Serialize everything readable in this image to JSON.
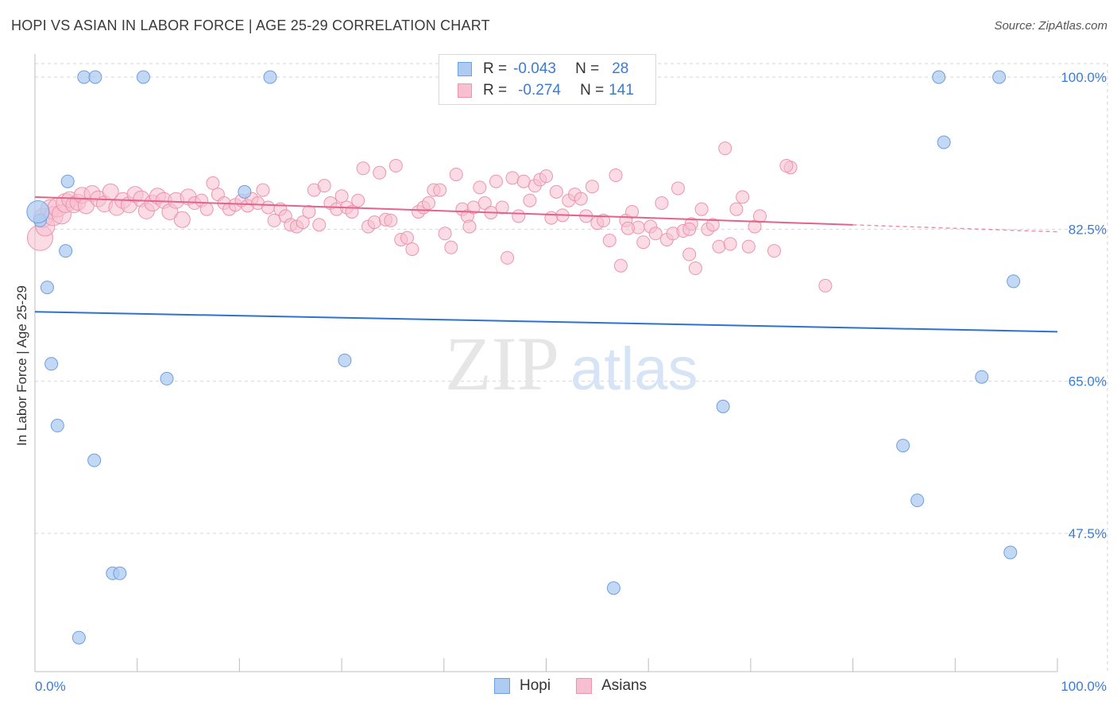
{
  "title": "HOPI VS ASIAN IN LABOR FORCE | AGE 25-29 CORRELATION CHART",
  "source": "Source: ZipAtlas.com",
  "watermark": {
    "zip": "ZIP",
    "atlas": "atlas"
  },
  "colors": {
    "hopi_fill": "#aecbf2",
    "hopi_stroke": "#6f9fdc",
    "hopi_line": "#2d72d2",
    "asian_fill": "#f7bfd0",
    "asian_stroke": "#eb94b0",
    "asian_line": "#e2648c",
    "axis_label": "#3d7bd0",
    "grid": "#d6d6d6"
  },
  "legend": {
    "hopi": {
      "r_label": "R =",
      "r_value": "-0.043",
      "n_label": "N =",
      "n_value": "28"
    },
    "asian": {
      "r_label": "R =",
      "r_value": "-0.274",
      "n_label": "N =",
      "n_value": "141"
    }
  },
  "bottom_legend": {
    "hopi": "Hopi",
    "asian": "Asians"
  },
  "chart_data": {
    "type": "scatter",
    "title": "HOPI VS ASIAN IN LABOR FORCE | AGE 25-29 CORRELATION CHART",
    "xlabel": "",
    "ylabel": "In Labor Force | Age 25-29",
    "xlim": [
      0,
      100
    ],
    "ylim": [
      33,
      102
    ],
    "x_tick_labels": [
      "0.0%",
      "100.0%"
    ],
    "y_ticks": [
      47.5,
      65.0,
      82.5,
      100.0
    ],
    "y_tick_labels": [
      "47.5%",
      "65.0%",
      "82.5%",
      "100.0%"
    ],
    "series": [
      {
        "name": "Hopi",
        "points": [
          [
            4.8,
            100.0
          ],
          [
            5.9,
            100.0
          ],
          [
            10.6,
            100.0
          ],
          [
            23.0,
            100.0
          ],
          [
            88.4,
            100.0
          ],
          [
            94.3,
            100.0
          ],
          [
            88.9,
            92.5
          ],
          [
            3.2,
            88.0
          ],
          [
            20.5,
            86.8
          ],
          [
            0.5,
            83.5
          ],
          [
            3.0,
            80.0
          ],
          [
            1.2,
            75.8
          ],
          [
            95.7,
            76.5
          ],
          [
            1.6,
            67.0
          ],
          [
            30.3,
            67.4
          ],
          [
            12.9,
            65.3
          ],
          [
            92.6,
            65.5
          ],
          [
            67.3,
            62.1
          ],
          [
            2.2,
            59.9
          ],
          [
            84.9,
            57.6
          ],
          [
            5.8,
            55.9
          ],
          [
            86.3,
            51.3
          ],
          [
            95.4,
            45.3
          ],
          [
            7.6,
            42.9
          ],
          [
            8.3,
            42.9
          ],
          [
            56.6,
            41.2
          ],
          [
            4.3,
            35.5
          ],
          [
            0.3,
            84.5
          ]
        ],
        "trend": {
          "x": [
            0,
            100
          ],
          "y": [
            73.0,
            70.7
          ]
        }
      },
      {
        "name": "Asians",
        "points": [
          [
            0.5,
            81.5
          ],
          [
            0.8,
            83.8
          ],
          [
            1.0,
            82.8
          ],
          [
            1.5,
            84.8
          ],
          [
            1.8,
            84.0
          ],
          [
            2.2,
            85.0
          ],
          [
            2.6,
            84.2
          ],
          [
            3.0,
            85.5
          ],
          [
            3.4,
            85.9
          ],
          [
            3.8,
            85.3
          ],
          [
            4.2,
            85.6
          ],
          [
            4.6,
            86.4
          ],
          [
            5.0,
            85.2
          ],
          [
            5.6,
            86.6
          ],
          [
            6.2,
            86.0
          ],
          [
            6.8,
            85.4
          ],
          [
            7.4,
            86.8
          ],
          [
            8.0,
            85.0
          ],
          [
            8.6,
            85.8
          ],
          [
            9.2,
            85.3
          ],
          [
            9.8,
            86.5
          ],
          [
            10.4,
            86.0
          ],
          [
            10.9,
            84.6
          ],
          [
            11.5,
            85.5
          ],
          [
            12.0,
            86.3
          ],
          [
            12.6,
            85.8
          ],
          [
            13.2,
            84.5
          ],
          [
            13.8,
            85.8
          ],
          [
            14.4,
            83.6
          ],
          [
            15.0,
            86.2
          ],
          [
            15.6,
            85.5
          ],
          [
            16.3,
            85.8
          ],
          [
            16.8,
            84.8
          ],
          [
            17.4,
            87.8
          ],
          [
            17.9,
            86.5
          ],
          [
            18.5,
            85.5
          ],
          [
            19.0,
            84.8
          ],
          [
            19.6,
            85.3
          ],
          [
            20.2,
            85.8
          ],
          [
            20.8,
            85.2
          ],
          [
            21.2,
            86.0
          ],
          [
            21.8,
            85.5
          ],
          [
            22.3,
            87.0
          ],
          [
            22.8,
            85.0
          ],
          [
            23.4,
            83.5
          ],
          [
            24.0,
            84.8
          ],
          [
            24.5,
            84.0
          ],
          [
            25.0,
            83.0
          ],
          [
            25.6,
            82.8
          ],
          [
            26.2,
            83.3
          ],
          [
            26.8,
            84.5
          ],
          [
            27.3,
            87.0
          ],
          [
            27.8,
            83.0
          ],
          [
            28.3,
            87.5
          ],
          [
            28.9,
            85.5
          ],
          [
            29.5,
            84.8
          ],
          [
            30.0,
            86.3
          ],
          [
            30.5,
            85.0
          ],
          [
            31.0,
            84.5
          ],
          [
            31.6,
            85.8
          ],
          [
            32.1,
            89.5
          ],
          [
            32.6,
            82.8
          ],
          [
            33.2,
            83.3
          ],
          [
            33.7,
            89.0
          ],
          [
            34.3,
            83.6
          ],
          [
            34.8,
            83.5
          ],
          [
            35.3,
            89.8
          ],
          [
            35.8,
            81.3
          ],
          [
            36.4,
            81.5
          ],
          [
            36.9,
            80.2
          ],
          [
            37.5,
            84.5
          ],
          [
            38.0,
            85.0
          ],
          [
            38.5,
            85.5
          ],
          [
            39.0,
            87.0
          ],
          [
            39.6,
            87.0
          ],
          [
            40.1,
            82.0
          ],
          [
            40.7,
            80.4
          ],
          [
            41.2,
            88.8
          ],
          [
            41.8,
            84.8
          ],
          [
            42.3,
            84.0
          ],
          [
            42.9,
            85.0
          ],
          [
            43.5,
            87.3
          ],
          [
            44.0,
            85.5
          ],
          [
            44.6,
            84.4
          ],
          [
            45.1,
            88.0
          ],
          [
            45.7,
            85.0
          ],
          [
            46.2,
            79.2
          ],
          [
            46.7,
            88.4
          ],
          [
            47.3,
            84.0
          ],
          [
            47.8,
            88.0
          ],
          [
            48.4,
            85.8
          ],
          [
            48.9,
            87.5
          ],
          [
            49.4,
            88.2
          ],
          [
            50.0,
            88.6
          ],
          [
            50.5,
            83.8
          ],
          [
            51.0,
            86.8
          ],
          [
            51.6,
            84.1
          ],
          [
            52.2,
            85.8
          ],
          [
            52.8,
            86.5
          ],
          [
            53.4,
            86.0
          ],
          [
            53.9,
            84.0
          ],
          [
            54.5,
            87.4
          ],
          [
            55.0,
            83.2
          ],
          [
            55.6,
            83.5
          ],
          [
            56.2,
            81.2
          ],
          [
            56.8,
            88.7
          ],
          [
            57.3,
            78.3
          ],
          [
            57.8,
            83.5
          ],
          [
            58.4,
            84.5
          ],
          [
            59.0,
            82.7
          ],
          [
            59.5,
            81.0
          ],
          [
            60.2,
            82.8
          ],
          [
            60.7,
            82.0
          ],
          [
            61.3,
            85.5
          ],
          [
            61.8,
            81.3
          ],
          [
            62.4,
            82.0
          ],
          [
            62.9,
            87.2
          ],
          [
            63.4,
            82.3
          ],
          [
            64.0,
            79.6
          ],
          [
            64.6,
            78.0
          ],
          [
            65.2,
            84.8
          ],
          [
            65.8,
            82.5
          ],
          [
            66.3,
            83.0
          ],
          [
            66.9,
            80.5
          ],
          [
            67.5,
            91.8
          ],
          [
            68.0,
            80.8
          ],
          [
            68.6,
            84.8
          ],
          [
            69.2,
            86.2
          ],
          [
            69.8,
            80.5
          ],
          [
            70.4,
            82.8
          ],
          [
            70.9,
            84.0
          ],
          [
            72.3,
            80.0
          ],
          [
            73.9,
            89.6
          ],
          [
            77.3,
            76.0
          ],
          [
            73.5,
            89.8
          ],
          [
            58.0,
            82.6
          ],
          [
            42.5,
            82.8
          ],
          [
            64.2,
            83.1
          ],
          [
            64.0,
            82.5
          ]
        ],
        "trend": {
          "x": [
            0,
            80
          ],
          "y": [
            86.2,
            83.0
          ],
          "dashed_extension": {
            "x": [
              80,
              100
            ],
            "y": [
              83.0,
              82.2
            ]
          }
        }
      }
    ]
  }
}
